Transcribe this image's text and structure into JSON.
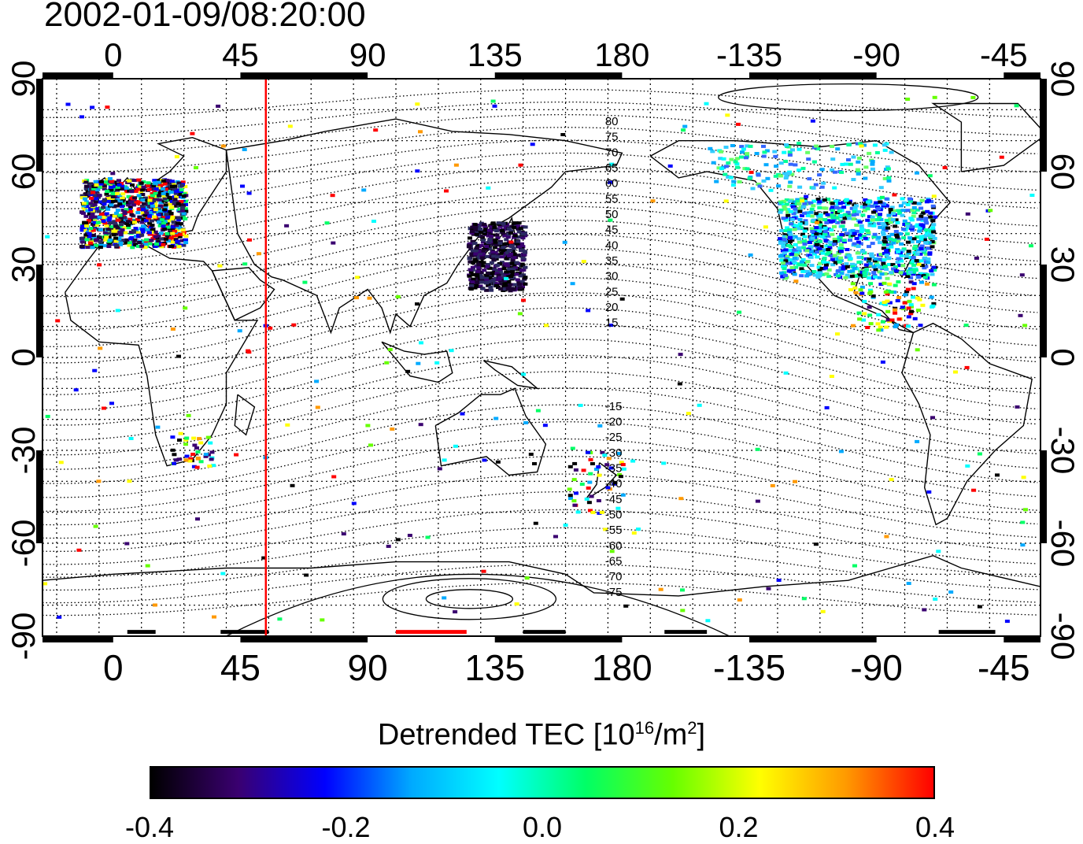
{
  "title": "2002-01-09/08:20:00",
  "lon_ticks": [
    {
      "lon": 0,
      "label": "0"
    },
    {
      "lon": 45,
      "label": "45"
    },
    {
      "lon": 90,
      "label": "90"
    },
    {
      "lon": 135,
      "label": "135"
    },
    {
      "lon": 180,
      "label": "180"
    },
    {
      "lon": 225,
      "label": "-135"
    },
    {
      "lon": 270,
      "label": "-90"
    },
    {
      "lon": 315,
      "label": "-45"
    }
  ],
  "lat_ticks": [
    {
      "lat": 90,
      "label": "90"
    },
    {
      "lat": 60,
      "label": "60"
    },
    {
      "lat": 30,
      "label": "30"
    },
    {
      "lat": 0,
      "label": "0"
    },
    {
      "lat": -30,
      "label": "-30"
    },
    {
      "lat": -60,
      "label": "-60"
    },
    {
      "lat": -90,
      "label": "-90"
    }
  ],
  "map_extent": {
    "lon_min": -25,
    "lon_max": 328,
    "lat_min": -90,
    "lat_max": 90
  },
  "terminator_lon": 54,
  "mag_lat_labels": [
    "80",
    "75",
    "70",
    "65",
    "60",
    "55",
    "50",
    "45",
    "40",
    "35",
    "30",
    "25",
    "20",
    "15",
    "-15",
    "-20",
    "-25",
    "-30",
    "-35",
    "-40",
    "-45",
    "-50",
    "-55",
    "-60",
    "-65",
    "-70",
    "-75"
  ],
  "colorbar": {
    "title_main": "Detrended TEC  [10",
    "title_exp1": "16",
    "title_mid": "/m",
    "title_exp2": "2",
    "title_end": "]",
    "min": -0.4,
    "max": 0.4,
    "ticks": [
      "-0.4",
      "-0.2",
      "0.0",
      "0.2",
      "0.4"
    ],
    "colors": [
      "#000000",
      "#3a0070",
      "#0000ff",
      "#00aaff",
      "#00ffff",
      "#00ff66",
      "#66ff00",
      "#ffff00",
      "#ff9900",
      "#ff0000"
    ]
  },
  "colors": {
    "terminator": "#ff0000",
    "coast": "#000000",
    "frame": "#000000"
  }
}
